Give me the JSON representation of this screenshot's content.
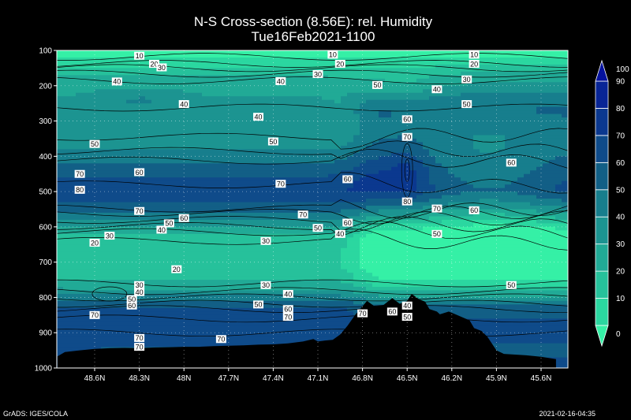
{
  "chart_data": {
    "type": "heatmap",
    "title": "N-S Cross-section (8.56E): rel. Humidity",
    "subtitle": "Tue16Feb2021-1100",
    "xlabel": "",
    "ylabel": "",
    "x_ticks": [
      "48.6N",
      "48.3N",
      "48N",
      "47.7N",
      "47.4N",
      "47.1N",
      "46.8N",
      "46.5N",
      "46.2N",
      "45.9N",
      "45.6N"
    ],
    "y_ticks": [
      100,
      200,
      300,
      400,
      500,
      600,
      700,
      800,
      900,
      1000
    ],
    "ylim": [
      100,
      1000
    ],
    "grid": true,
    "legend_placement": "right",
    "colorbar": {
      "levels": [
        0,
        10,
        20,
        30,
        40,
        50,
        60,
        70,
        80,
        90,
        100
      ],
      "colors": [
        "#35f0a6",
        "#2bd7a0",
        "#26c19b",
        "#21aa96",
        "#1c9491",
        "#177e8d",
        "#125f86",
        "#0f4b8a",
        "#0b388f",
        "#082596",
        "#05129d"
      ]
    },
    "contour_labels": [
      {
        "v": "10",
        "lat": 48.3,
        "p": 115
      },
      {
        "v": "10",
        "lat": 47.0,
        "p": 112
      },
      {
        "v": "10",
        "lat": 46.05,
        "p": 112
      },
      {
        "v": "20",
        "lat": 48.2,
        "p": 138
      },
      {
        "v": "30",
        "lat": 48.15,
        "p": 148
      },
      {
        "v": "20",
        "lat": 46.95,
        "p": 138
      },
      {
        "v": "20",
        "lat": 46.05,
        "p": 138
      },
      {
        "v": "40",
        "lat": 48.45,
        "p": 188
      },
      {
        "v": "40",
        "lat": 47.35,
        "p": 187
      },
      {
        "v": "30",
        "lat": 47.1,
        "p": 167
      },
      {
        "v": "30",
        "lat": 46.1,
        "p": 182
      },
      {
        "v": "50",
        "lat": 46.7,
        "p": 198
      },
      {
        "v": "40",
        "lat": 46.3,
        "p": 210
      },
      {
        "v": "40",
        "lat": 48.0,
        "p": 252
      },
      {
        "v": "50",
        "lat": 46.1,
        "p": 252
      },
      {
        "v": "40",
        "lat": 47.5,
        "p": 288
      },
      {
        "v": "60",
        "lat": 46.5,
        "p": 295
      },
      {
        "v": "50",
        "lat": 48.6,
        "p": 365
      },
      {
        "v": "50",
        "lat": 47.4,
        "p": 358
      },
      {
        "v": "70",
        "lat": 46.5,
        "p": 345
      },
      {
        "v": "70",
        "lat": 48.7,
        "p": 450
      },
      {
        "v": "60",
        "lat": 48.3,
        "p": 445
      },
      {
        "v": "60",
        "lat": 46.9,
        "p": 465
      },
      {
        "v": "70",
        "lat": 47.35,
        "p": 478
      },
      {
        "v": "60",
        "lat": 45.8,
        "p": 418
      },
      {
        "v": "80",
        "lat": 48.7,
        "p": 495
      },
      {
        "v": "80",
        "lat": 46.5,
        "p": 528
      },
      {
        "v": "70",
        "lat": 46.3,
        "p": 548
      },
      {
        "v": "70",
        "lat": 48.3,
        "p": 555
      },
      {
        "v": "60",
        "lat": 48.0,
        "p": 575
      },
      {
        "v": "50",
        "lat": 48.1,
        "p": 590
      },
      {
        "v": "40",
        "lat": 48.15,
        "p": 608
      },
      {
        "v": "70",
        "lat": 47.2,
        "p": 565
      },
      {
        "v": "60",
        "lat": 46.9,
        "p": 588
      },
      {
        "v": "50",
        "lat": 47.1,
        "p": 603
      },
      {
        "v": "40",
        "lat": 46.95,
        "p": 620
      },
      {
        "v": "60",
        "lat": 46.05,
        "p": 553
      },
      {
        "v": "50",
        "lat": 46.3,
        "p": 620
      },
      {
        "v": "30",
        "lat": 48.5,
        "p": 625
      },
      {
        "v": "20",
        "lat": 48.6,
        "p": 645
      },
      {
        "v": "30",
        "lat": 47.45,
        "p": 640
      },
      {
        "v": "20",
        "lat": 48.05,
        "p": 720
      },
      {
        "v": "30",
        "lat": 48.3,
        "p": 765
      },
      {
        "v": "30",
        "lat": 47.45,
        "p": 765
      },
      {
        "v": "40",
        "lat": 48.3,
        "p": 785
      },
      {
        "v": "50",
        "lat": 48.35,
        "p": 805
      },
      {
        "v": "60",
        "lat": 48.35,
        "p": 823
      },
      {
        "v": "40",
        "lat": 47.3,
        "p": 790
      },
      {
        "v": "50",
        "lat": 47.5,
        "p": 820
      },
      {
        "v": "60",
        "lat": 47.3,
        "p": 833
      },
      {
        "v": "70",
        "lat": 47.3,
        "p": 855
      },
      {
        "v": "50",
        "lat": 45.8,
        "p": 765
      },
      {
        "v": "70",
        "lat": 48.6,
        "p": 850
      },
      {
        "v": "70",
        "lat": 46.8,
        "p": 845
      },
      {
        "v": "60",
        "lat": 46.6,
        "p": 840
      },
      {
        "v": "40",
        "lat": 46.5,
        "p": 823
      },
      {
        "v": "50",
        "lat": 46.5,
        "p": 855
      },
      {
        "v": "70",
        "lat": 48.3,
        "p": 915
      },
      {
        "v": "70",
        "lat": 48.3,
        "p": 940
      },
      {
        "v": "70",
        "lat": 47.75,
        "p": 918
      }
    ]
  },
  "footer": {
    "left": "GrADS: IGES/COLA",
    "right": "2021-02-16-04:35"
  }
}
